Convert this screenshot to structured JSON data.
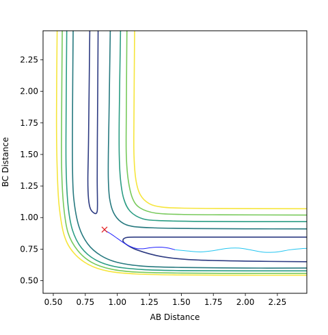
{
  "chart_data": {
    "type": "contour",
    "title": "",
    "xlabel": "AB Distance",
    "ylabel": "BC Distance",
    "xlim": [
      0.42,
      2.48
    ],
    "ylim": [
      0.4,
      2.48
    ],
    "xticks": [
      0.5,
      0.75,
      1.0,
      1.25,
      1.5,
      1.75,
      2.0,
      2.25
    ],
    "xtick_labels": [
      "0.50",
      "0.75",
      "1.00",
      "1.25",
      "1.50",
      "1.75",
      "2.00",
      "2.25"
    ],
    "yticks": [
      0.5,
      0.75,
      1.0,
      1.25,
      1.5,
      1.75,
      2.0,
      2.25
    ],
    "ytick_labels": [
      "0.50",
      "0.75",
      "1.00",
      "1.25",
      "1.50",
      "1.75",
      "2.00",
      "2.25"
    ],
    "grid": false,
    "contours": [
      {
        "color": "#2c3a81",
        "paths": [
          [
            [
              0.785,
              2.48
            ],
            [
              0.775,
              1.6
            ],
            [
              0.77,
              1.3
            ],
            [
              0.775,
              1.15
            ],
            [
              0.79,
              1.07
            ],
            [
              0.82,
              1.035
            ],
            [
              0.84,
              1.04
            ],
            [
              0.845,
              1.1
            ],
            [
              0.843,
              1.3
            ],
            [
              0.844,
              1.6
            ],
            [
              0.847,
              2.0
            ],
            [
              0.85,
              2.48
            ]
          ],
          [
            [
              2.48,
              0.845
            ],
            [
              1.6,
              0.845
            ],
            [
              1.2,
              0.845
            ],
            [
              1.08,
              0.843
            ],
            [
              1.045,
              0.825
            ],
            [
              1.06,
              0.795
            ],
            [
              1.15,
              0.745
            ],
            [
              1.35,
              0.69
            ],
            [
              1.6,
              0.665
            ],
            [
              2.0,
              0.655
            ],
            [
              2.48,
              0.65
            ]
          ]
        ]
      },
      {
        "color": "#25787e",
        "paths": [
          [
            [
              0.945,
              2.48
            ],
            [
              0.935,
              1.8
            ],
            [
              0.93,
              1.5
            ],
            [
              0.93,
              1.3
            ],
            [
              0.94,
              1.15
            ],
            [
              0.97,
              1.04
            ],
            [
              1.03,
              0.965
            ],
            [
              1.12,
              0.93
            ],
            [
              1.3,
              0.918
            ],
            [
              1.6,
              0.913
            ],
            [
              2.0,
              0.911
            ],
            [
              2.48,
              0.91
            ]
          ],
          [
            [
              0.655,
              2.48
            ],
            [
              0.65,
              1.8
            ],
            [
              0.65,
              1.4
            ],
            [
              0.66,
              1.15
            ],
            [
              0.7,
              0.93
            ],
            [
              0.77,
              0.79
            ],
            [
              0.87,
              0.7
            ],
            [
              1.0,
              0.645
            ],
            [
              1.2,
              0.615
            ],
            [
              1.5,
              0.605
            ],
            [
              2.0,
              0.6
            ],
            [
              2.48,
              0.6
            ]
          ]
        ]
      },
      {
        "color": "#2a9c83",
        "paths": [
          [
            [
              1.025,
              2.48
            ],
            [
              1.015,
              1.8
            ],
            [
              1.015,
              1.5
            ],
            [
              1.025,
              1.3
            ],
            [
              1.05,
              1.15
            ],
            [
              1.1,
              1.05
            ],
            [
              1.2,
              0.99
            ],
            [
              1.35,
              0.975
            ],
            [
              1.6,
              0.97
            ],
            [
              2.0,
              0.968
            ],
            [
              2.48,
              0.968
            ]
          ],
          [
            [
              0.605,
              2.48
            ],
            [
              0.6,
              1.8
            ],
            [
              0.6,
              1.4
            ],
            [
              0.615,
              1.1
            ],
            [
              0.65,
              0.9
            ],
            [
              0.72,
              0.76
            ],
            [
              0.83,
              0.665
            ],
            [
              0.98,
              0.612
            ],
            [
              1.2,
              0.588
            ],
            [
              1.5,
              0.58
            ],
            [
              2.0,
              0.578
            ],
            [
              2.48,
              0.578
            ]
          ]
        ]
      },
      {
        "color": "#77c95a",
        "paths": [
          [
            [
              1.075,
              2.48
            ],
            [
              1.07,
              1.8
            ],
            [
              1.07,
              1.5
            ],
            [
              1.085,
              1.3
            ],
            [
              1.12,
              1.15
            ],
            [
              1.18,
              1.075
            ],
            [
              1.3,
              1.035
            ],
            [
              1.5,
              1.025
            ],
            [
              1.8,
              1.022
            ],
            [
              2.48,
              1.02
            ]
          ],
          [
            [
              0.57,
              2.48
            ],
            [
              0.565,
              1.8
            ],
            [
              0.565,
              1.4
            ],
            [
              0.58,
              1.1
            ],
            [
              0.615,
              0.88
            ],
            [
              0.69,
              0.74
            ],
            [
              0.8,
              0.645
            ],
            [
              0.95,
              0.592
            ],
            [
              1.15,
              0.568
            ],
            [
              1.5,
              0.56
            ],
            [
              2.0,
              0.558
            ],
            [
              2.48,
              0.558
            ]
          ]
        ]
      },
      {
        "color": "#f6e53b",
        "paths": [
          [
            [
              1.135,
              2.48
            ],
            [
              1.13,
              1.8
            ],
            [
              1.13,
              1.5
            ],
            [
              1.145,
              1.3
            ],
            [
              1.18,
              1.18
            ],
            [
              1.25,
              1.11
            ],
            [
              1.35,
              1.083
            ],
            [
              1.5,
              1.075
            ],
            [
              1.8,
              1.072
            ],
            [
              2.48,
              1.07
            ]
          ],
          [
            [
              0.53,
              2.48
            ],
            [
              0.525,
              1.8
            ],
            [
              0.53,
              1.4
            ],
            [
              0.545,
              1.1
            ],
            [
              0.585,
              0.86
            ],
            [
              0.66,
              0.72
            ],
            [
              0.78,
              0.625
            ],
            [
              0.93,
              0.575
            ],
            [
              1.15,
              0.553
            ],
            [
              1.5,
              0.545
            ],
            [
              2.0,
              0.543
            ],
            [
              2.48,
              0.543
            ]
          ]
        ]
      }
    ],
    "trajectory": {
      "color": "#1f1fff",
      "points": [
        [
          0.9,
          0.9
        ],
        [
          0.95,
          0.87
        ],
        [
          1.0,
          0.835
        ],
        [
          1.05,
          0.8
        ],
        [
          1.1,
          0.772
        ],
        [
          1.15,
          0.755
        ],
        [
          1.2,
          0.753
        ],
        [
          1.25,
          0.76
        ],
        [
          1.3,
          0.765
        ],
        [
          1.35,
          0.765
        ],
        [
          1.4,
          0.758
        ],
        [
          1.45,
          0.745
        ]
      ]
    },
    "oscillation": {
      "color": "#20c4f0",
      "points": [
        [
          1.45,
          0.745
        ],
        [
          1.55,
          0.735
        ],
        [
          1.65,
          0.728
        ],
        [
          1.75,
          0.738
        ],
        [
          1.85,
          0.755
        ],
        [
          1.95,
          0.758
        ],
        [
          2.05,
          0.742
        ],
        [
          2.15,
          0.725
        ],
        [
          2.25,
          0.728
        ],
        [
          2.35,
          0.745
        ],
        [
          2.45,
          0.755
        ],
        [
          2.48,
          0.755
        ]
      ]
    },
    "marker": {
      "symbol": "x",
      "color": "#e31a1c",
      "x": 0.9,
      "y": 0.905
    }
  }
}
